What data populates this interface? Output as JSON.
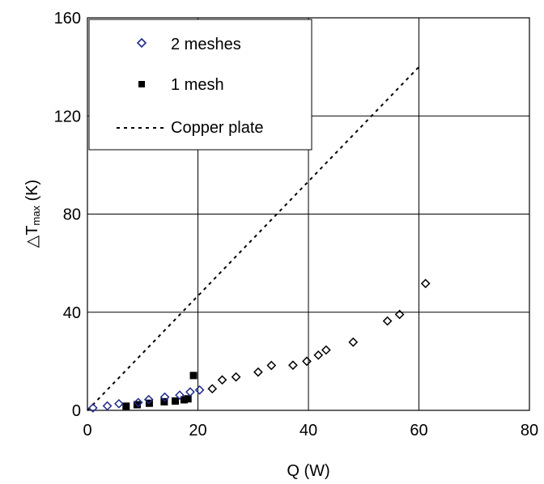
{
  "chart_data": {
    "type": "scatter",
    "xlabel": "Q (W)",
    "ylabel": {
      "delta": "△",
      "T": "T",
      "sub": "max",
      "unit": " (K)"
    },
    "xlim": [
      0,
      80
    ],
    "ylim": [
      0,
      160
    ],
    "x_ticks": [
      "0",
      "20",
      "40",
      "60",
      "80"
    ],
    "y_ticks": [
      "0",
      "40",
      "80",
      "120",
      "160"
    ],
    "grid": true,
    "legend_position": "top-left",
    "series": [
      {
        "name": "2 meshes",
        "marker": "diamond-open",
        "color_filled_region": "#1f2a8a",
        "color_rest": "#000000",
        "color_split_x": 21,
        "points": [
          [
            1,
            1
          ],
          [
            3.6,
            1.8
          ],
          [
            5.7,
            2.7
          ],
          [
            9.2,
            3.2
          ],
          [
            11.1,
            4.4
          ],
          [
            14,
            5.4
          ],
          [
            16.7,
            6.2
          ],
          [
            18.6,
            7.5
          ],
          [
            20.3,
            8.3
          ],
          [
            22.6,
            8.8
          ],
          [
            24.4,
            12.4
          ],
          [
            26.9,
            13.6
          ],
          [
            30.9,
            15.6
          ],
          [
            33.3,
            18.3
          ],
          [
            37.2,
            18.4
          ],
          [
            39.7,
            20
          ],
          [
            41.8,
            22.5
          ],
          [
            43.2,
            24.6
          ],
          [
            48.1,
            27.8
          ],
          [
            54.3,
            36.4
          ],
          [
            56.5,
            39.1
          ],
          [
            61.2,
            51.7
          ]
        ]
      },
      {
        "name": "1 mesh",
        "marker": "square-filled",
        "color": "#000000",
        "points": [
          [
            7,
            1.7
          ],
          [
            9,
            2.3
          ],
          [
            11.2,
            2.9
          ],
          [
            13.9,
            3.5
          ],
          [
            15.9,
            3.8
          ],
          [
            17.5,
            4.3
          ],
          [
            18.2,
            4.7
          ],
          [
            19.2,
            14.2
          ]
        ]
      },
      {
        "name": "Copper plate",
        "style": "dashed-line",
        "color": "#000000",
        "points": [
          [
            0,
            0
          ],
          [
            60,
            140
          ]
        ]
      }
    ]
  }
}
